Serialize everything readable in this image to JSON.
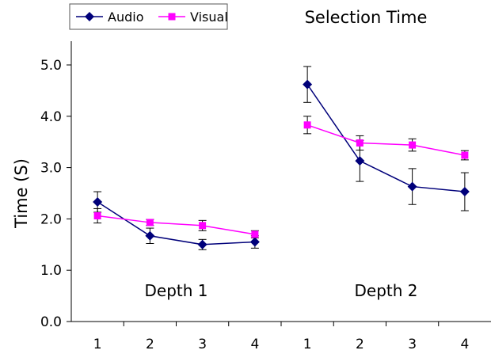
{
  "chart_data": {
    "type": "line",
    "title": "Selection Time",
    "ylabel": "Time (S)",
    "xlabel": "",
    "ylim": [
      0,
      5.0
    ],
    "yticks": [
      "0.0",
      "1.0",
      "2.0",
      "3.0",
      "4.0",
      "5.0"
    ],
    "grid": false,
    "legend_position": "top-left",
    "groups": [
      {
        "label": "Depth 1",
        "x": [
          "1",
          "2",
          "3",
          "4"
        ]
      },
      {
        "label": "Depth 2",
        "x": [
          "1",
          "2",
          "3",
          "4"
        ]
      }
    ],
    "series": [
      {
        "name": "Audio",
        "color": "#00007a",
        "marker": "diamond",
        "values": [
          [
            2.33,
            1.67,
            1.5,
            1.55
          ],
          [
            4.62,
            3.13,
            2.63,
            2.53
          ]
        ],
        "errors": [
          [
            0.2,
            0.15,
            0.1,
            0.12
          ],
          [
            0.35,
            0.4,
            0.35,
            0.37
          ]
        ]
      },
      {
        "name": "Visual",
        "color": "#ff00ff",
        "marker": "square",
        "values": [
          [
            2.06,
            1.93,
            1.87,
            1.7
          ],
          [
            3.83,
            3.48,
            3.44,
            3.24
          ]
        ],
        "errors": [
          [
            0.14,
            0.06,
            0.1,
            0.07
          ],
          [
            0.17,
            0.14,
            0.12,
            0.09
          ]
        ]
      }
    ]
  }
}
